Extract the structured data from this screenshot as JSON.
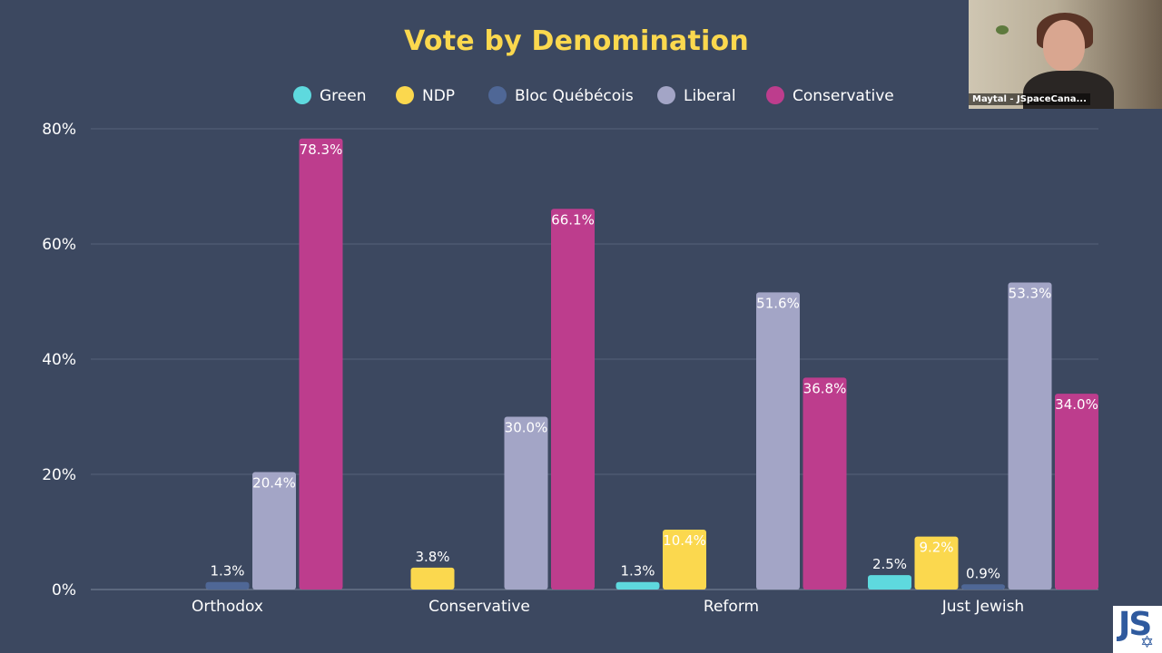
{
  "chart_data": {
    "type": "bar",
    "title": "Vote by Denomination",
    "categories": [
      "Orthodox",
      "Conservative",
      "Reform",
      "Just Jewish"
    ],
    "series": [
      {
        "name": "Green",
        "color": "#5ed9de",
        "values": [
          null,
          null,
          1.3,
          2.5
        ]
      },
      {
        "name": "NDP",
        "color": "#fbd84e",
        "values": [
          null,
          3.8,
          10.4,
          9.2
        ]
      },
      {
        "name": "Bloc Québécois",
        "color": "#4f6796",
        "values": [
          1.3,
          null,
          null,
          0.9
        ]
      },
      {
        "name": "Liberal",
        "color": "#a3a5c6",
        "values": [
          20.4,
          30.0,
          51.6,
          53.3
        ]
      },
      {
        "name": "Conservative",
        "color": "#bd3d8d",
        "values": [
          78.3,
          66.1,
          36.8,
          34.0
        ]
      }
    ],
    "ylim": [
      0,
      80
    ],
    "yticks": [
      0,
      20,
      40,
      60,
      80
    ],
    "ytick_labels": [
      "0%",
      "20%",
      "40%",
      "60%",
      "80%"
    ],
    "value_suffix": "%",
    "grid": true,
    "legend_position": "top-center",
    "xlabel": "",
    "ylabel": ""
  },
  "video": {
    "participant_name": "Maytal - JSpaceCana..."
  },
  "logo": {
    "text": "JS"
  }
}
